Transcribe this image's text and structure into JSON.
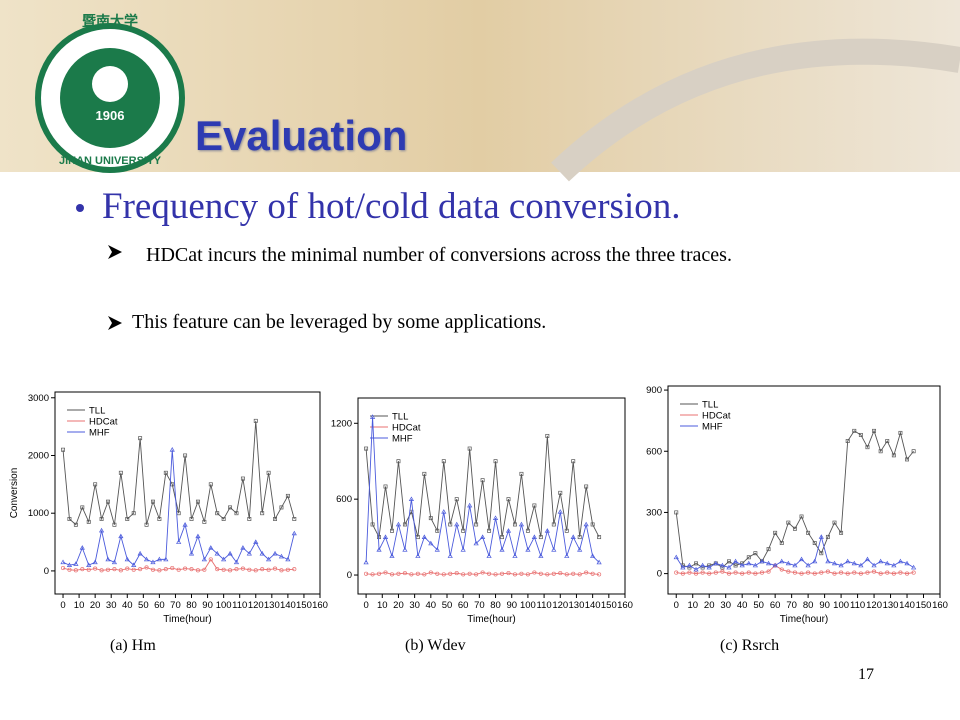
{
  "logo": {
    "name": "暨南大学",
    "year": "1906",
    "english": "JINAN UNIVERSITY"
  },
  "title": "Evaluation",
  "bullet": "Frequency of hot/cold data conversion.",
  "subbullets": [
    "HDCat incurs the minimal number of conversions across the three traces.",
    "This feature can be leveraged by some applications."
  ],
  "page_number": "17",
  "chart_data": [
    {
      "type": "line",
      "caption": "(a) Hm",
      "xlabel": "Time(hour)",
      "ylabel": "Conversion",
      "xlim": [
        -5,
        160
      ],
      "xticks": [
        0,
        10,
        20,
        30,
        40,
        50,
        60,
        70,
        80,
        90,
        100,
        110,
        120,
        130,
        140,
        150,
        160
      ],
      "ylim": [
        -400,
        3100
      ],
      "yticks": [
        0,
        1000,
        2000,
        3000
      ],
      "x": [
        0,
        4,
        8,
        12,
        16,
        20,
        24,
        28,
        32,
        36,
        40,
        44,
        48,
        52,
        56,
        60,
        64,
        68,
        72,
        76,
        80,
        84,
        88,
        92,
        96,
        100,
        104,
        108,
        112,
        116,
        120,
        124,
        128,
        132,
        136,
        140,
        144
      ],
      "series": [
        {
          "name": "TLL",
          "color": "#555555",
          "values": [
            2100,
            900,
            800,
            1100,
            850,
            1500,
            900,
            1200,
            800,
            1700,
            900,
            1000,
            2300,
            800,
            1200,
            900,
            1700,
            1500,
            1000,
            2000,
            900,
            1200,
            850,
            1500,
            1000,
            900,
            1100,
            1000,
            1600,
            900,
            2600,
            1000,
            1700,
            900,
            1100,
            1300,
            900
          ]
        },
        {
          "name": "HDCat",
          "color": "#e87070",
          "values": [
            50,
            20,
            10,
            30,
            20,
            40,
            10,
            20,
            30,
            10,
            40,
            20,
            30,
            60,
            20,
            10,
            30,
            50,
            20,
            40,
            30,
            10,
            20,
            200,
            30,
            20,
            10,
            30,
            40,
            20,
            10,
            30,
            20,
            40,
            10,
            20,
            30
          ]
        },
        {
          "name": "MHF",
          "color": "#4b5bdc",
          "values": [
            150,
            100,
            120,
            400,
            100,
            150,
            700,
            200,
            150,
            600,
            200,
            100,
            300,
            200,
            150,
            200,
            200,
            2100,
            500,
            800,
            300,
            600,
            200,
            400,
            300,
            200,
            300,
            150,
            400,
            300,
            500,
            300,
            200,
            300,
            250,
            200,
            650
          ]
        }
      ]
    },
    {
      "type": "line",
      "caption": "(b) Wdev",
      "xlabel": "Time(hour)",
      "xlim": [
        -5,
        160
      ],
      "xticks": [
        0,
        10,
        20,
        30,
        40,
        50,
        60,
        70,
        80,
        90,
        100,
        110,
        120,
        130,
        140,
        150,
        160
      ],
      "ylim": [
        -150,
        1400
      ],
      "yticks": [
        0,
        600,
        1200
      ],
      "x": [
        0,
        4,
        8,
        12,
        16,
        20,
        24,
        28,
        32,
        36,
        40,
        44,
        48,
        52,
        56,
        60,
        64,
        68,
        72,
        76,
        80,
        84,
        88,
        92,
        96,
        100,
        104,
        108,
        112,
        116,
        120,
        124,
        128,
        132,
        136,
        140,
        144
      ],
      "series": [
        {
          "name": "TLL",
          "color": "#555555",
          "values": [
            1000,
            400,
            300,
            700,
            350,
            900,
            400,
            500,
            300,
            800,
            450,
            350,
            900,
            400,
            600,
            350,
            1000,
            400,
            750,
            350,
            900,
            300,
            600,
            400,
            800,
            350,
            550,
            300,
            1100,
            400,
            650,
            350,
            900,
            300,
            700,
            400,
            300
          ]
        },
        {
          "name": "HDCat",
          "color": "#e87070",
          "values": [
            10,
            5,
            10,
            20,
            5,
            10,
            15,
            5,
            10,
            5,
            20,
            10,
            5,
            10,
            15,
            5,
            10,
            5,
            20,
            10,
            5,
            10,
            15,
            5,
            10,
            5,
            20,
            10,
            5,
            10,
            15,
            5,
            10,
            5,
            20,
            10,
            5
          ]
        },
        {
          "name": "MHF",
          "color": "#4b5bdc",
          "values": [
            100,
            1250,
            200,
            300,
            150,
            400,
            200,
            600,
            150,
            300,
            250,
            200,
            500,
            150,
            400,
            200,
            550,
            250,
            300,
            150,
            450,
            200,
            350,
            150,
            400,
            200,
            300,
            150,
            350,
            200,
            500,
            150,
            300,
            200,
            400,
            150,
            100
          ]
        }
      ]
    },
    {
      "type": "line",
      "caption": "(c) Rsrch",
      "xlabel": "Time(hour)",
      "xlim": [
        -5,
        160
      ],
      "xticks": [
        0,
        10,
        20,
        30,
        40,
        50,
        60,
        70,
        80,
        90,
        100,
        110,
        120,
        130,
        140,
        150,
        160
      ],
      "ylim": [
        -100,
        920
      ],
      "yticks": [
        0,
        300,
        600,
        900
      ],
      "x": [
        0,
        4,
        8,
        12,
        16,
        20,
        24,
        28,
        32,
        36,
        40,
        44,
        48,
        52,
        56,
        60,
        64,
        68,
        72,
        76,
        80,
        84,
        88,
        92,
        96,
        100,
        104,
        108,
        112,
        116,
        120,
        124,
        128,
        132,
        136,
        140,
        144
      ],
      "series": [
        {
          "name": "TLL",
          "color": "#555555",
          "values": [
            300,
            40,
            30,
            50,
            30,
            40,
            50,
            30,
            60,
            40,
            50,
            80,
            100,
            60,
            120,
            200,
            150,
            250,
            220,
            280,
            200,
            150,
            100,
            180,
            250,
            200,
            650,
            700,
            680,
            620,
            700,
            600,
            650,
            580,
            690,
            560,
            600
          ]
        },
        {
          "name": "HDCat",
          "color": "#e87070",
          "values": [
            5,
            0,
            5,
            0,
            5,
            0,
            5,
            10,
            0,
            5,
            0,
            5,
            0,
            5,
            10,
            40,
            20,
            10,
            5,
            0,
            5,
            0,
            5,
            10,
            0,
            5,
            0,
            5,
            0,
            5,
            10,
            0,
            5,
            0,
            5,
            0,
            5
          ]
        },
        {
          "name": "MHF",
          "color": "#4b5bdc",
          "values": [
            80,
            30,
            40,
            20,
            40,
            30,
            50,
            40,
            30,
            60,
            40,
            50,
            40,
            60,
            50,
            40,
            60,
            50,
            40,
            70,
            40,
            60,
            180,
            60,
            50,
            40,
            60,
            50,
            40,
            70,
            40,
            60,
            50,
            40,
            60,
            50,
            30
          ]
        }
      ]
    }
  ]
}
